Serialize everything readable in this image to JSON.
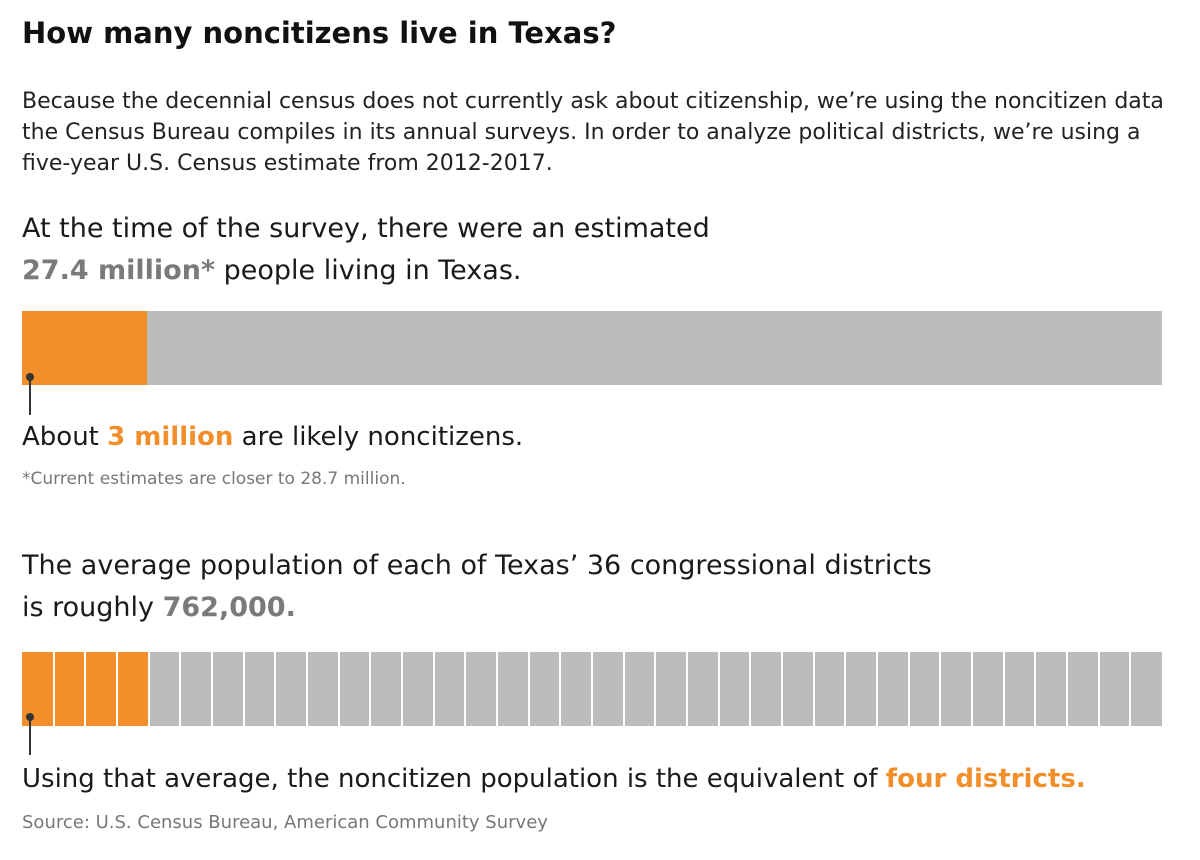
{
  "header": {
    "title": "How many noncitizens live in Texas?",
    "intro": "Because the decennial census does not currently ask about citizenship, we’re using the noncitizen data the Census Bureau compiles in its annual surveys. In order to analyze political districts, we’re using a five-year U.S. Census estimate from 2012-2017."
  },
  "section1": {
    "line1": "At the time of the survey, there were an estimated",
    "highlight": "27.4 million*",
    "line2_rest": " people living in Texas.",
    "annotation_prefix": "About ",
    "annotation_highlight": "3 million",
    "annotation_suffix": " are likely noncitizens.",
    "footnote": "*Current estimates are closer to 28.7 million."
  },
  "section2": {
    "line1": "The average population of each of Texas’ 36 congressional districts",
    "line2_prefix": "is roughly ",
    "highlight": "762,000.",
    "annotation_prefix": "Using that average, the noncitizen population is the equivalent of ",
    "annotation_highlight": "four districts."
  },
  "source": "Source: U.S. Census Bureau, American Community Survey",
  "colors": {
    "highlight_orange": "#f28f2b",
    "bar_gray": "#bcbcbc",
    "number_gray": "#7a7a7a"
  },
  "chart_data": [
    {
      "type": "bar",
      "orientation": "horizontal-stacked",
      "total": 27.4,
      "unit": "million",
      "series": [
        {
          "name": "noncitizens",
          "value": 3,
          "color": "#f28f2b"
        }
      ]
    },
    {
      "type": "bar",
      "orientation": "horizontal-segmented",
      "segments_total": 36,
      "segments_highlighted": 4,
      "segment_value": 762000,
      "colors": {
        "highlighted": "#f28f2b",
        "rest": "#bcbcbc"
      }
    }
  ]
}
